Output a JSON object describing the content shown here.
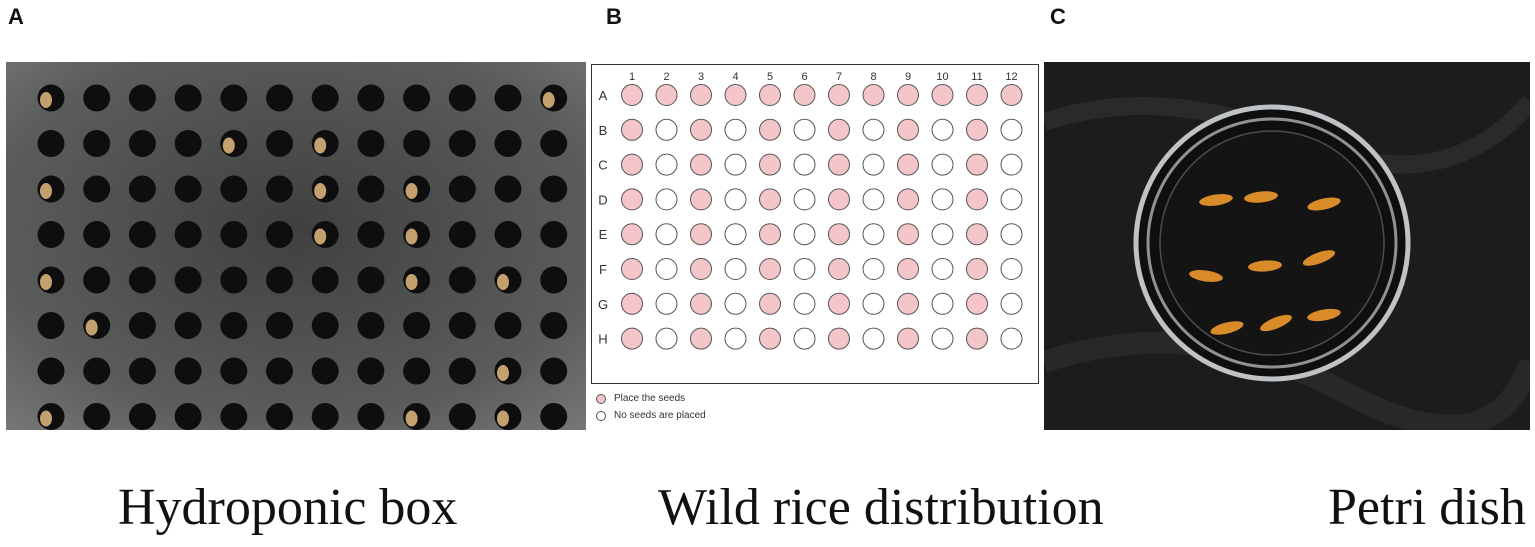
{
  "panels": [
    {
      "letter": "A",
      "caption": "Hydroponic box"
    },
    {
      "letter": "B",
      "caption": "Wild rice distribution"
    },
    {
      "letter": "C",
      "caption": "Petri dish"
    }
  ],
  "plate": {
    "columns": [
      "1",
      "2",
      "3",
      "4",
      "5",
      "6",
      "7",
      "8",
      "9",
      "10",
      "11",
      "12"
    ],
    "rows": [
      "A",
      "B",
      "C",
      "D",
      "E",
      "F",
      "G",
      "H"
    ],
    "wells": [
      [
        1,
        1,
        1,
        1,
        1,
        1,
        1,
        1,
        1,
        1,
        1,
        1
      ],
      [
        1,
        0,
        1,
        0,
        1,
        0,
        1,
        0,
        1,
        0,
        1,
        0
      ],
      [
        1,
        0,
        1,
        0,
        1,
        0,
        1,
        0,
        1,
        0,
        1,
        0
      ],
      [
        1,
        0,
        1,
        0,
        1,
        0,
        1,
        0,
        1,
        0,
        1,
        0
      ],
      [
        1,
        0,
        1,
        0,
        1,
        0,
        1,
        0,
        1,
        0,
        1,
        0
      ],
      [
        1,
        0,
        1,
        0,
        1,
        0,
        1,
        0,
        1,
        0,
        1,
        0
      ],
      [
        1,
        0,
        1,
        0,
        1,
        0,
        1,
        0,
        1,
        0,
        1,
        0
      ],
      [
        1,
        0,
        1,
        0,
        1,
        0,
        1,
        0,
        1,
        0,
        1,
        0
      ]
    ],
    "seed_color": "#f4c6c9",
    "empty_color": "#ffffff"
  },
  "legend": {
    "seeded": "Place the seeds",
    "empty": "No seeds are placed"
  },
  "photo_a": {
    "box_color": "#5b5d5c",
    "hole_color": "#0e0e0e",
    "seed_color": "#d8b07a",
    "seeded_holes": [
      [
        0,
        0
      ],
      [
        0,
        11
      ],
      [
        1,
        4
      ],
      [
        1,
        6
      ],
      [
        2,
        0
      ],
      [
        2,
        6
      ],
      [
        2,
        8
      ],
      [
        3,
        6
      ],
      [
        3,
        8
      ],
      [
        4,
        0
      ],
      [
        4,
        8
      ],
      [
        4,
        10
      ],
      [
        5,
        1
      ],
      [
        6,
        10
      ],
      [
        7,
        0
      ],
      [
        7,
        8
      ],
      [
        7,
        10
      ]
    ]
  },
  "photo_c": {
    "background_color": "#1c1c1c",
    "dish_rim_color": "#bfc3c6",
    "seed_color": "#d98b2a",
    "seed_count": 9
  }
}
